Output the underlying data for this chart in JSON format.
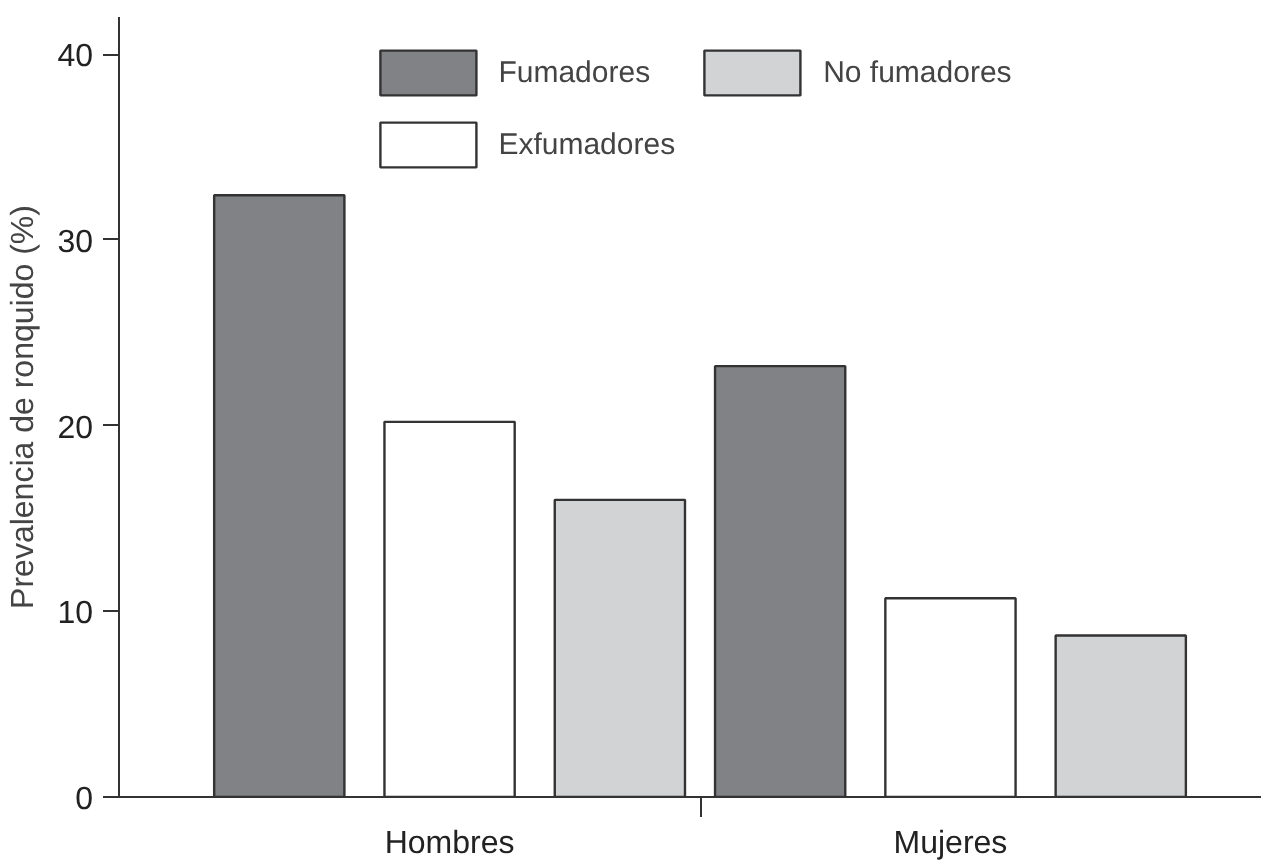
{
  "chart_data": {
    "type": "bar",
    "ylabel": "Prevalencia de ronquido (%)",
    "categories": [
      "Hombres",
      "Mujeres"
    ],
    "series": [
      {
        "name": "Fumadores",
        "color": "#808285",
        "values": [
          32.4,
          23.2
        ]
      },
      {
        "name": "Exfumadores",
        "color": "#ffffff",
        "values": [
          20.2,
          10.7
        ]
      },
      {
        "name": "No fumadores",
        "color": "#d1d3d4",
        "values": [
          16.0,
          8.7
        ]
      }
    ],
    "ylim": [
      0,
      42
    ],
    "yticks": [
      0,
      10,
      20,
      30,
      40
    ],
    "grid": false,
    "legend": "top"
  }
}
